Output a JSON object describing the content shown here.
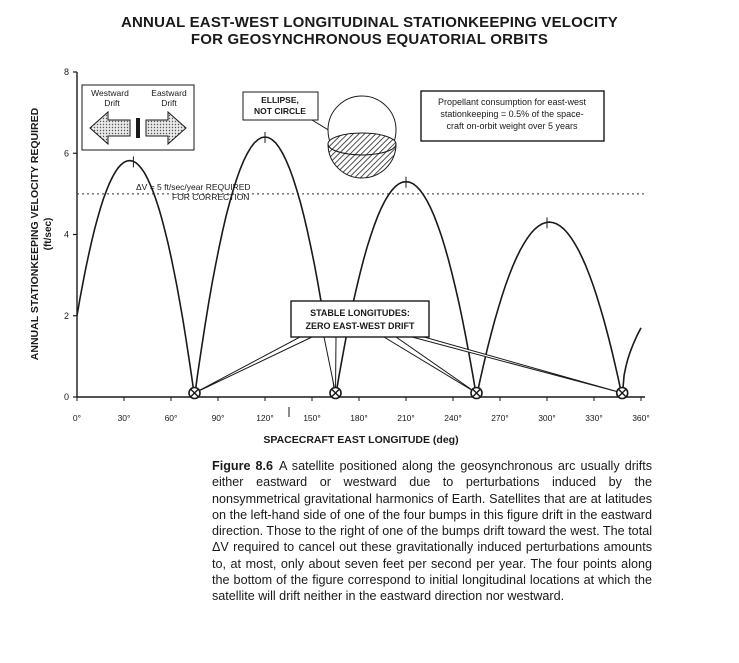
{
  "title_line1": "ANNUAL EAST-WEST LONGITUDINAL STATIONKEEPING VELOCITY",
  "title_line2": "FOR GEOSYNCHRONOUS EQUATORIAL ORBITS",
  "chart_data": {
    "type": "line",
    "xlabel": "SPACECRAFT EAST LONGITUDE (deg)",
    "ylabel": "ANNUAL STATIONKEEPING VELOCITY REQUIRED",
    "ylabel_unit": "(ft/sec)",
    "xlim": [
      0,
      360
    ],
    "ylim": [
      0,
      8
    ],
    "x_ticks": [
      0,
      30,
      60,
      90,
      120,
      150,
      180,
      210,
      240,
      270,
      300,
      330,
      360
    ],
    "x_tick_labels": [
      "0°",
      "30°",
      "60°",
      "90°",
      "120°",
      "150°",
      "180°",
      "210°",
      "240°",
      "270°",
      "300°",
      "330°",
      "360°"
    ],
    "y_ticks": [
      0,
      2,
      4,
      6,
      8
    ],
    "y_tick_labels": [
      "0",
      "2",
      "4",
      "6",
      "8"
    ],
    "grid": false,
    "series": [
      {
        "values_xy": [
          [
            0,
            2.0
          ],
          [
            36,
            5.8
          ],
          [
            75,
            0
          ],
          [
            120,
            6.4
          ],
          [
            165,
            0
          ],
          [
            210,
            5.3
          ],
          [
            255,
            0
          ],
          [
            300,
            4.3
          ],
          [
            348,
            0
          ],
          [
            360,
            1.7
          ]
        ],
        "shape": "four arches between stable longitudes"
      }
    ],
    "reference_line": {
      "y": 5.0,
      "style": "dotted",
      "label": "ΔV = 5 ft/sec/year REQUIRED FOR CORRECTION"
    },
    "stable_points_x": [
      75,
      165,
      255,
      348
    ],
    "annotations": {
      "drift_westward": "Westward Drift",
      "drift_eastward": "Eastward Drift",
      "ellipse": "ELLIPSE, NOT CIRCLE",
      "propellant": "Propellant consumption for east-west stationkeeping = 0.5% of the spacecraft on-orbit weight over 5 years",
      "stable": "STABLE LONGITUDES: ZERO EAST-WEST DRIFT"
    }
  },
  "labels": {
    "westward_1": "Westward",
    "westward_2": "Drift",
    "eastward_1": "Eastward",
    "eastward_2": "Drift",
    "ellipse_1": "ELLIPSE,",
    "ellipse_2": "NOT CIRCLE",
    "prop_1": "Propellant consumption for east-west",
    "prop_2": "stationkeeping = 0.5% of the space-",
    "prop_3": "craft on-orbit weight over 5 years",
    "dv_1": "ΔV = 5 ft/sec/year REQUIRED",
    "dv_2": "FOR CORRECTION",
    "stable_1": "STABLE LONGITUDES:",
    "stable_2": "ZERO EAST-WEST DRIFT",
    "ylabel_main": "ANNUAL STATIONKEEPING VELOCITY REQUIRED",
    "ylabel_unit": "(ft/sec)",
    "xlabel": "SPACECRAFT EAST LONGITUDE (deg)"
  },
  "caption": {
    "lead": "Figure 8.6",
    "text": "A satellite positioned along the geosynchronous arc usually drifts either eastward or westward due to perturbations induced by the nonsymmetrical gravitational harmonics of Earth. Satellites that are at latitudes on the left-hand side of one of the four bumps in this figure drift in the eastward direction. Those to the right of one of the bumps drift toward the west. The total ΔV required to cancel out these gravitationally induced perturbations amounts to, at most, only about seven feet per second per year. The four points along the bottom of the figure correspond to initial longitudinal locations at which the satellite will drift neither in the eastward direction nor westward."
  },
  "colors": {
    "ink": "#1a1a1a",
    "background": "#ffffff"
  }
}
